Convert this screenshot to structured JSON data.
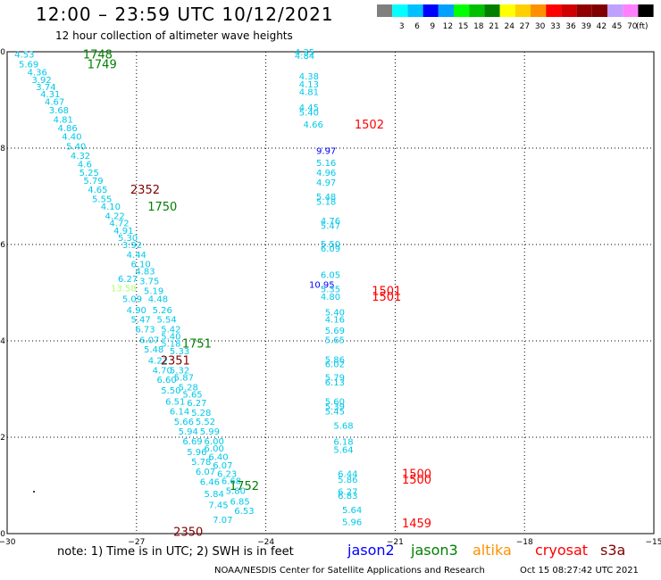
{
  "header": {
    "title": "12:00 – 23:59 UTC 10/12/2021",
    "subtitle": "12 hour collection of altimeter wave heights"
  },
  "legend": {
    "unit": "(ft)",
    "swatches": [
      {
        "label": "",
        "color": "#7f7f7f"
      },
      {
        "label": "3",
        "color": "#00ffff"
      },
      {
        "label": "6",
        "color": "#00c0ff"
      },
      {
        "label": "9",
        "color": "#0000ff"
      },
      {
        "label": "12",
        "color": "#00a0ff"
      },
      {
        "label": "15",
        "color": "#00ff00"
      },
      {
        "label": "18",
        "color": "#00c000"
      },
      {
        "label": "21",
        "color": "#008000"
      },
      {
        "label": "24",
        "color": "#ffff00"
      },
      {
        "label": "27",
        "color": "#ffd000"
      },
      {
        "label": "30",
        "color": "#ff9000"
      },
      {
        "label": "33",
        "color": "#ff0000"
      },
      {
        "label": "36",
        "color": "#d00000"
      },
      {
        "label": "39",
        "color": "#900000"
      },
      {
        "label": "42",
        "color": "#800000"
      },
      {
        "label": "45",
        "color": "#c0a0ff"
      },
      {
        "label": "70",
        "color": "#ff80ff"
      },
      {
        "label": "",
        "color": "#000000"
      }
    ]
  },
  "map": {
    "xticks": [
      "−30",
      "−27",
      "−24",
      "−21",
      "−18",
      "−15"
    ],
    "yticks": [
      "0",
      "2",
      "4",
      "6",
      "8",
      "10"
    ],
    "lon_range": [
      -30,
      -15
    ],
    "lat_range": [
      0,
      10
    ]
  },
  "chart_data": {
    "type": "scatter",
    "x_axis": "longitude",
    "y_axis": "latitude",
    "xlim": [
      -30,
      -15
    ],
    "ylim": [
      0,
      10
    ],
    "time_labels": [
      {
        "text": "1748",
        "lon": -27.9,
        "lat": 9.95,
        "color": "#008000"
      },
      {
        "text": "1749",
        "lon": -27.8,
        "lat": 9.75,
        "color": "#008000"
      },
      {
        "text": "2352",
        "lon": -26.8,
        "lat": 7.15,
        "color": "#800000"
      },
      {
        "text": "1750",
        "lon": -26.4,
        "lat": 6.8,
        "color": "#008000"
      },
      {
        "text": "1751",
        "lon": -25.6,
        "lat": 3.95,
        "color": "#008000"
      },
      {
        "text": "2351",
        "lon": -26.1,
        "lat": 3.6,
        "color": "#800000"
      },
      {
        "text": "1752",
        "lon": -24.5,
        "lat": 1.0,
        "color": "#008000"
      },
      {
        "text": "2350",
        "lon": -25.8,
        "lat": 0.05,
        "color": "#800000"
      },
      {
        "text": "1502",
        "lon": -21.6,
        "lat": 8.5,
        "color": "#ff0000"
      },
      {
        "text": "1501",
        "lon": -21.2,
        "lat": 5.05,
        "color": "#ff0000"
      },
      {
        "text": "1501",
        "lon": -21.2,
        "lat": 4.93,
        "color": "#ff0000"
      },
      {
        "text": "1500",
        "lon": -20.5,
        "lat": 1.25,
        "color": "#ff0000"
      },
      {
        "text": "1500",
        "lon": -20.5,
        "lat": 1.13,
        "color": "#ff0000"
      },
      {
        "text": "1459",
        "lon": -20.5,
        "lat": 0.22,
        "color": "#ff0000"
      }
    ],
    "track_west": [
      {
        "v": "4.53",
        "lon": -29.6,
        "lat": 9.95
      },
      {
        "v": "5.69",
        "lon": -29.5,
        "lat": 9.75
      },
      {
        "v": "4.36",
        "lon": -29.3,
        "lat": 9.58
      },
      {
        "v": "3.92",
        "lon": -29.2,
        "lat": 9.43
      },
      {
        "v": "3.74",
        "lon": -29.1,
        "lat": 9.28
      },
      {
        "v": "4.31",
        "lon": -29.0,
        "lat": 9.13
      },
      {
        "v": "4.67",
        "lon": -28.9,
        "lat": 8.97
      },
      {
        "v": "3.68",
        "lon": -28.8,
        "lat": 8.8
      },
      {
        "v": "4.81",
        "lon": -28.7,
        "lat": 8.6
      },
      {
        "v": "4.86",
        "lon": -28.6,
        "lat": 8.43
      },
      {
        "v": "4.40",
        "lon": -28.5,
        "lat": 8.25
      },
      {
        "v": "5.40",
        "lon": -28.4,
        "lat": 8.05
      },
      {
        "v": "4.32",
        "lon": -28.3,
        "lat": 7.85
      },
      {
        "v": "4.6",
        "lon": -28.2,
        "lat": 7.68
      },
      {
        "v": "5.25",
        "lon": -28.1,
        "lat": 7.5
      },
      {
        "v": "5.79",
        "lon": -28.0,
        "lat": 7.33
      },
      {
        "v": "4.65",
        "lon": -27.9,
        "lat": 7.15
      },
      {
        "v": "5.55",
        "lon": -27.8,
        "lat": 6.95
      },
      {
        "v": "4.10",
        "lon": -27.6,
        "lat": 6.8
      },
      {
        "v": "4.22",
        "lon": -27.5,
        "lat": 6.6
      },
      {
        "v": "4.72",
        "lon": -27.4,
        "lat": 6.45
      },
      {
        "v": "4.91",
        "lon": -27.3,
        "lat": 6.3
      },
      {
        "v": "5.30",
        "lon": -27.2,
        "lat": 6.15
      },
      {
        "v": "3.92",
        "lon": -27.1,
        "lat": 6.0
      },
      {
        "v": "4.44",
        "lon": -27.0,
        "lat": 5.8
      },
      {
        "v": "6.10",
        "lon": -26.9,
        "lat": 5.6
      },
      {
        "v": "4.83",
        "lon": -26.8,
        "lat": 5.45
      },
      {
        "v": "6.27",
        "lon": -27.2,
        "lat": 5.3
      },
      {
        "v": "3.75",
        "lon": -26.7,
        "lat": 5.25
      },
      {
        "v": "13.58",
        "lon": -27.3,
        "lat": 5.1,
        "color": "#b0ff70"
      },
      {
        "v": "5.19",
        "lon": -26.6,
        "lat": 5.05
      },
      {
        "v": "5.09",
        "lon": -27.1,
        "lat": 4.88
      },
      {
        "v": "4.48",
        "lon": -26.5,
        "lat": 4.88
      },
      {
        "v": "4.90",
        "lon": -27.0,
        "lat": 4.65
      },
      {
        "v": "5.26",
        "lon": -26.4,
        "lat": 4.65
      },
      {
        "v": "5.47",
        "lon": -26.9,
        "lat": 4.45
      },
      {
        "v": "5.54",
        "lon": -26.3,
        "lat": 4.45
      },
      {
        "v": "6.73",
        "lon": -26.8,
        "lat": 4.25
      },
      {
        "v": "5.42",
        "lon": -26.2,
        "lat": 4.25
      },
      {
        "v": "6.07",
        "lon": -26.7,
        "lat": 4.03
      },
      {
        "v": "5.40",
        "lon": -26.2,
        "lat": 4.1
      },
      {
        "v": "5.18",
        "lon": -26.2,
        "lat": 3.95
      },
      {
        "v": "5.48",
        "lon": -26.6,
        "lat": 3.83
      },
      {
        "v": "5.33",
        "lon": -26.0,
        "lat": 3.8
      },
      {
        "v": "4.22",
        "lon": -26.5,
        "lat": 3.6
      },
      {
        "v": "4.70",
        "lon": -26.4,
        "lat": 3.4
      },
      {
        "v": "5.32",
        "lon": -26.0,
        "lat": 3.4
      },
      {
        "v": "6.60",
        "lon": -26.3,
        "lat": 3.2
      },
      {
        "v": "5.87",
        "lon": -25.9,
        "lat": 3.25
      },
      {
        "v": "5.28",
        "lon": -25.8,
        "lat": 3.05
      },
      {
        "v": "5.50",
        "lon": -26.2,
        "lat": 2.98
      },
      {
        "v": "5.65",
        "lon": -25.7,
        "lat": 2.9
      },
      {
        "v": "6.51",
        "lon": -26.1,
        "lat": 2.75
      },
      {
        "v": "6.27",
        "lon": -25.6,
        "lat": 2.72
      },
      {
        "v": "6.14",
        "lon": -26.0,
        "lat": 2.55
      },
      {
        "v": "5.28",
        "lon": -25.5,
        "lat": 2.52
      },
      {
        "v": "5.66",
        "lon": -25.9,
        "lat": 2.33
      },
      {
        "v": "5.52",
        "lon": -25.4,
        "lat": 2.33
      },
      {
        "v": "5.94",
        "lon": -25.8,
        "lat": 2.13
      },
      {
        "v": "5.99",
        "lon": -25.3,
        "lat": 2.13
      },
      {
        "v": "6.69",
        "lon": -25.7,
        "lat": 1.93
      },
      {
        "v": "6.00",
        "lon": -25.2,
        "lat": 1.93
      },
      {
        "v": "6.00",
        "lon": -25.2,
        "lat": 1.78
      },
      {
        "v": "5.96",
        "lon": -25.6,
        "lat": 1.7
      },
      {
        "v": "6.40",
        "lon": -25.1,
        "lat": 1.6
      },
      {
        "v": "5.78",
        "lon": -25.5,
        "lat": 1.5
      },
      {
        "v": "6.07",
        "lon": -25.0,
        "lat": 1.43
      },
      {
        "v": "6.07",
        "lon": -25.4,
        "lat": 1.3
      },
      {
        "v": "6.23",
        "lon": -24.9,
        "lat": 1.25
      },
      {
        "v": "6.46",
        "lon": -25.3,
        "lat": 1.08
      },
      {
        "v": "6.68",
        "lon": -24.8,
        "lat": 1.1
      },
      {
        "v": "5.80",
        "lon": -24.7,
        "lat": 0.9
      },
      {
        "v": "5.84",
        "lon": -25.2,
        "lat": 0.83
      },
      {
        "v": "6.85",
        "lon": -24.6,
        "lat": 0.68
      },
      {
        "v": "7.45",
        "lon": -25.1,
        "lat": 0.6
      },
      {
        "v": "6.53",
        "lon": -24.5,
        "lat": 0.48
      },
      {
        "v": "7.07",
        "lon": -25.0,
        "lat": 0.3
      }
    ],
    "track_east": [
      {
        "v": "4.35",
        "lon": -23.1,
        "lat": 10.0
      },
      {
        "v": "4.84",
        "lon": -23.1,
        "lat": 9.93
      },
      {
        "v": "4.38",
        "lon": -23.0,
        "lat": 9.5
      },
      {
        "v": "4.13",
        "lon": -23.0,
        "lat": 9.33
      },
      {
        "v": "4.81",
        "lon": -23.0,
        "lat": 9.18
      },
      {
        "v": "4.45",
        "lon": -23.0,
        "lat": 8.85
      },
      {
        "v": "5.40",
        "lon": -23.0,
        "lat": 8.75
      },
      {
        "v": "4.66",
        "lon": -22.9,
        "lat": 8.5
      },
      {
        "v": "9.97",
        "lon": -22.6,
        "lat": 7.95,
        "color": "#0000ff"
      },
      {
        "v": "5.16",
        "lon": -22.6,
        "lat": 7.7
      },
      {
        "v": "4.96",
        "lon": -22.6,
        "lat": 7.5
      },
      {
        "v": "4.97",
        "lon": -22.6,
        "lat": 7.3
      },
      {
        "v": "5.48",
        "lon": -22.6,
        "lat": 7.0
      },
      {
        "v": "5.18",
        "lon": -22.6,
        "lat": 6.9
      },
      {
        "v": "4.76",
        "lon": -22.5,
        "lat": 6.5
      },
      {
        "v": "5.47",
        "lon": -22.5,
        "lat": 6.4
      },
      {
        "v": "5.50",
        "lon": -22.5,
        "lat": 6.02
      },
      {
        "v": "6.09",
        "lon": -22.5,
        "lat": 5.93
      },
      {
        "v": "6.05",
        "lon": -22.5,
        "lat": 5.38
      },
      {
        "v": "10.95",
        "lon": -22.7,
        "lat": 5.18,
        "color": "#0000ff"
      },
      {
        "v": "5.35",
        "lon": -22.5,
        "lat": 5.08
      },
      {
        "v": "4.80",
        "lon": -22.5,
        "lat": 4.93
      },
      {
        "v": "5.40",
        "lon": -22.4,
        "lat": 4.6
      },
      {
        "v": "4.16",
        "lon": -22.4,
        "lat": 4.45
      },
      {
        "v": "5.69",
        "lon": -22.4,
        "lat": 4.22
      },
      {
        "v": "5.65",
        "lon": -22.4,
        "lat": 4.03
      },
      {
        "v": "5.86",
        "lon": -22.4,
        "lat": 3.62
      },
      {
        "v": "6.02",
        "lon": -22.4,
        "lat": 3.53
      },
      {
        "v": "5.79",
        "lon": -22.4,
        "lat": 3.25
      },
      {
        "v": "6.13",
        "lon": -22.4,
        "lat": 3.15
      },
      {
        "v": "5.60",
        "lon": -22.4,
        "lat": 2.75
      },
      {
        "v": "5.39",
        "lon": -22.4,
        "lat": 2.65
      },
      {
        "v": "5.45",
        "lon": -22.4,
        "lat": 2.55
      },
      {
        "v": "5.68",
        "lon": -22.2,
        "lat": 2.25
      },
      {
        "v": "6.18",
        "lon": -22.2,
        "lat": 1.92
      },
      {
        "v": "5.64",
        "lon": -22.2,
        "lat": 1.75
      },
      {
        "v": "6.44",
        "lon": -22.1,
        "lat": 1.25
      },
      {
        "v": "5.86",
        "lon": -22.1,
        "lat": 1.13
      },
      {
        "v": "6.27",
        "lon": -22.1,
        "lat": 0.88
      },
      {
        "v": "6.83",
        "lon": -22.1,
        "lat": 0.8
      },
      {
        "v": "5.64",
        "lon": -22.0,
        "lat": 0.5
      },
      {
        "v": "5.96",
        "lon": -22.0,
        "lat": 0.25
      }
    ]
  },
  "footer": {
    "note": "note: 1) Time is in UTC; 2) SWH is in feet",
    "satellites": [
      {
        "name": "jason2",
        "color": "#0000ff"
      },
      {
        "name": "jason3",
        "color": "#008000"
      },
      {
        "name": "altika",
        "color": "#ff9000"
      },
      {
        "name": "cryosat",
        "color": "#ff0000"
      },
      {
        "name": "s3a",
        "color": "#800000"
      }
    ],
    "credit": "NOAA/NESDIS Center for Satellite Applications and Research",
    "timestamp": "Oct 15 08:27:42 UTC 2021"
  }
}
